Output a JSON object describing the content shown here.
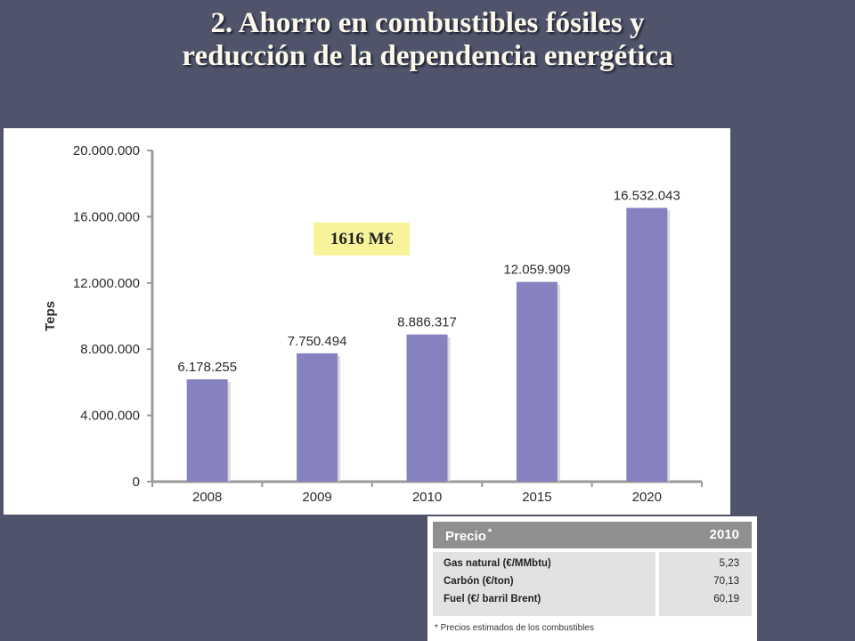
{
  "slide": {
    "title_line1": "2. Ahorro en combustibles fósiles y",
    "title_line2": "reducción de la dependencia energética",
    "callout": "1616 M€"
  },
  "chart_data": {
    "type": "bar",
    "title": "",
    "xlabel": "",
    "ylabel": "Teps",
    "categories": [
      "2008",
      "2009",
      "2010",
      "2015",
      "2020"
    ],
    "values": [
      6178255,
      7750494,
      8886317,
      12059909,
      16532043
    ],
    "value_labels": [
      "6.178.255",
      "7.750.494",
      "8.886.317",
      "12.059.909",
      "16.532.043"
    ],
    "ylim": [
      0,
      20000000
    ],
    "yticks": [
      0,
      4000000,
      8000000,
      12000000,
      16000000,
      20000000
    ],
    "ytick_labels": [
      "0",
      "4.000.000",
      "8.000.000",
      "12.000.000",
      "16.000.000",
      "20.000.000"
    ],
    "bar_color": "#8682bf",
    "grid": false
  },
  "price_table": {
    "header_label": "Precio",
    "header_mark": "*",
    "header_year": "2010",
    "rows": [
      {
        "name": "Gas natural (€/MMbtu)",
        "value": "5,23"
      },
      {
        "name": "Carbón (€/ton)",
        "value": "70,13"
      },
      {
        "name": "Fuel (€/ barril Brent)",
        "value": "60,19"
      }
    ],
    "footnote": "* Precios estimados de los combustibles",
    "header_color": "#8f8f8f",
    "cell_color": "#e2e2e2"
  }
}
